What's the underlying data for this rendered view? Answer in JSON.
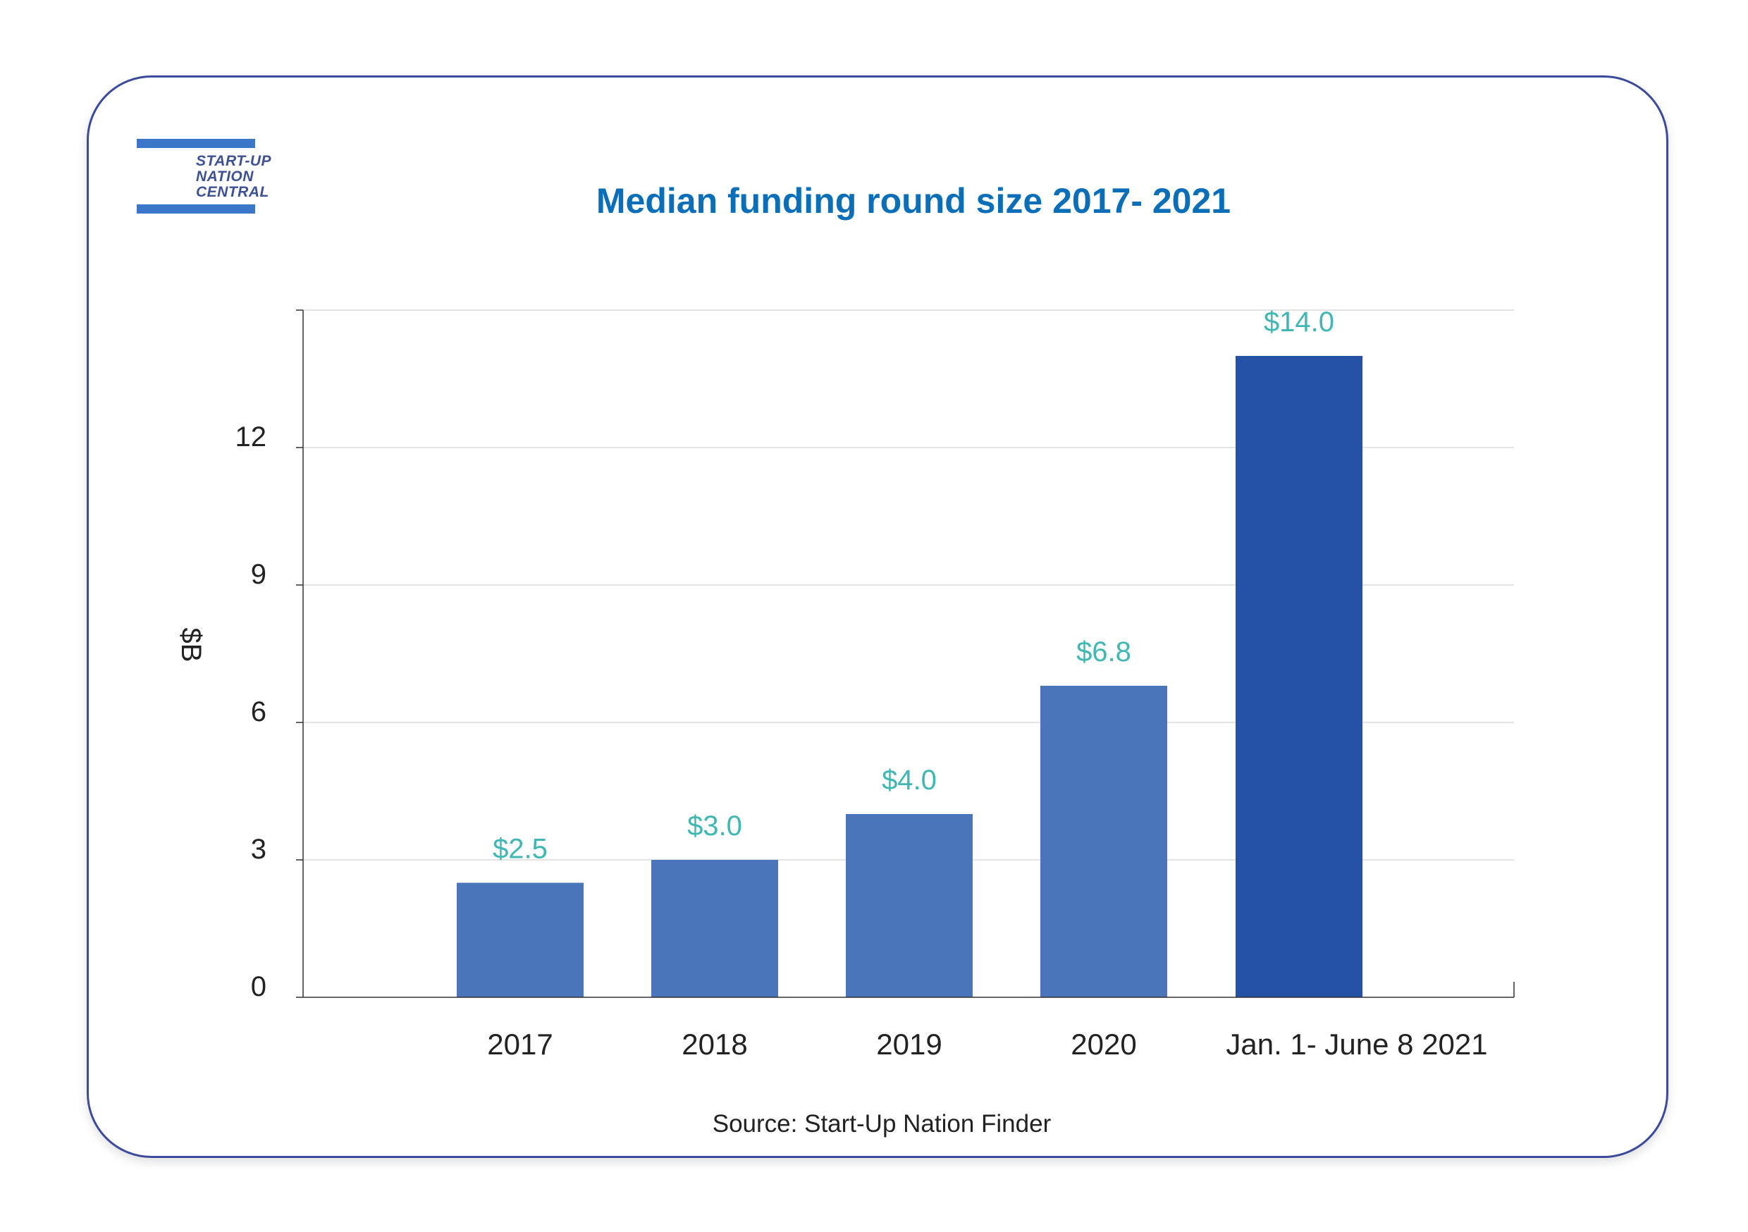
{
  "logo": {
    "lines": [
      "START-UP",
      "NATION",
      "CENTRAL"
    ]
  },
  "source": "Source: Start-Up Nation Finder",
  "colors": {
    "title": "#0a6fb8",
    "bar": "#4a75ba",
    "bar_highlight": "#2552a5",
    "data_label": "#3fb8b3",
    "border": "#3b4a9c"
  },
  "chart_data": {
    "type": "bar",
    "title": "Median funding round size 2017- 2021",
    "ylabel": "$B",
    "xlabel": "",
    "categories": [
      "2017",
      "2018",
      "2019",
      "2020",
      "Jan. 1- June 8 2021"
    ],
    "values": [
      2.5,
      3.0,
      4.0,
      6.8,
      14.0
    ],
    "data_labels": [
      "$2.5",
      "$3.0",
      "$4.0",
      "$6.8",
      "$14.0"
    ],
    "highlight_index": 4,
    "yticks": [
      0,
      3,
      6,
      9,
      12
    ],
    "ylim": [
      0,
      15
    ],
    "grid": true,
    "legend": "none"
  }
}
